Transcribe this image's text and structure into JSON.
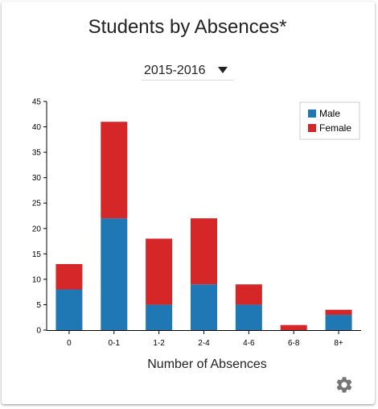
{
  "chart_data": {
    "type": "bar",
    "stacked": true,
    "title": "Students by Absences*",
    "xlabel": "Number of Absences",
    "ylabel": "",
    "categories": [
      "0",
      "0-1",
      "1-2",
      "2-4",
      "4-6",
      "6-8",
      "8+"
    ],
    "series": [
      {
        "name": "Male",
        "color": "#1f77b4",
        "values": [
          8,
          22,
          5,
          9,
          5,
          0,
          3
        ]
      },
      {
        "name": "Female",
        "color": "#d62728",
        "values": [
          5,
          19,
          13,
          13,
          4,
          1,
          1
        ]
      }
    ],
    "ylim": [
      0,
      45
    ],
    "yticks": [
      0,
      5,
      10,
      15,
      20,
      25,
      30,
      35,
      40,
      45
    ],
    "legend_position": "top-right",
    "grid": false
  },
  "filter": {
    "selected_year": "2015-2016"
  },
  "icons": {
    "settings": "gear-icon",
    "dropdown": "caret-down-icon"
  }
}
